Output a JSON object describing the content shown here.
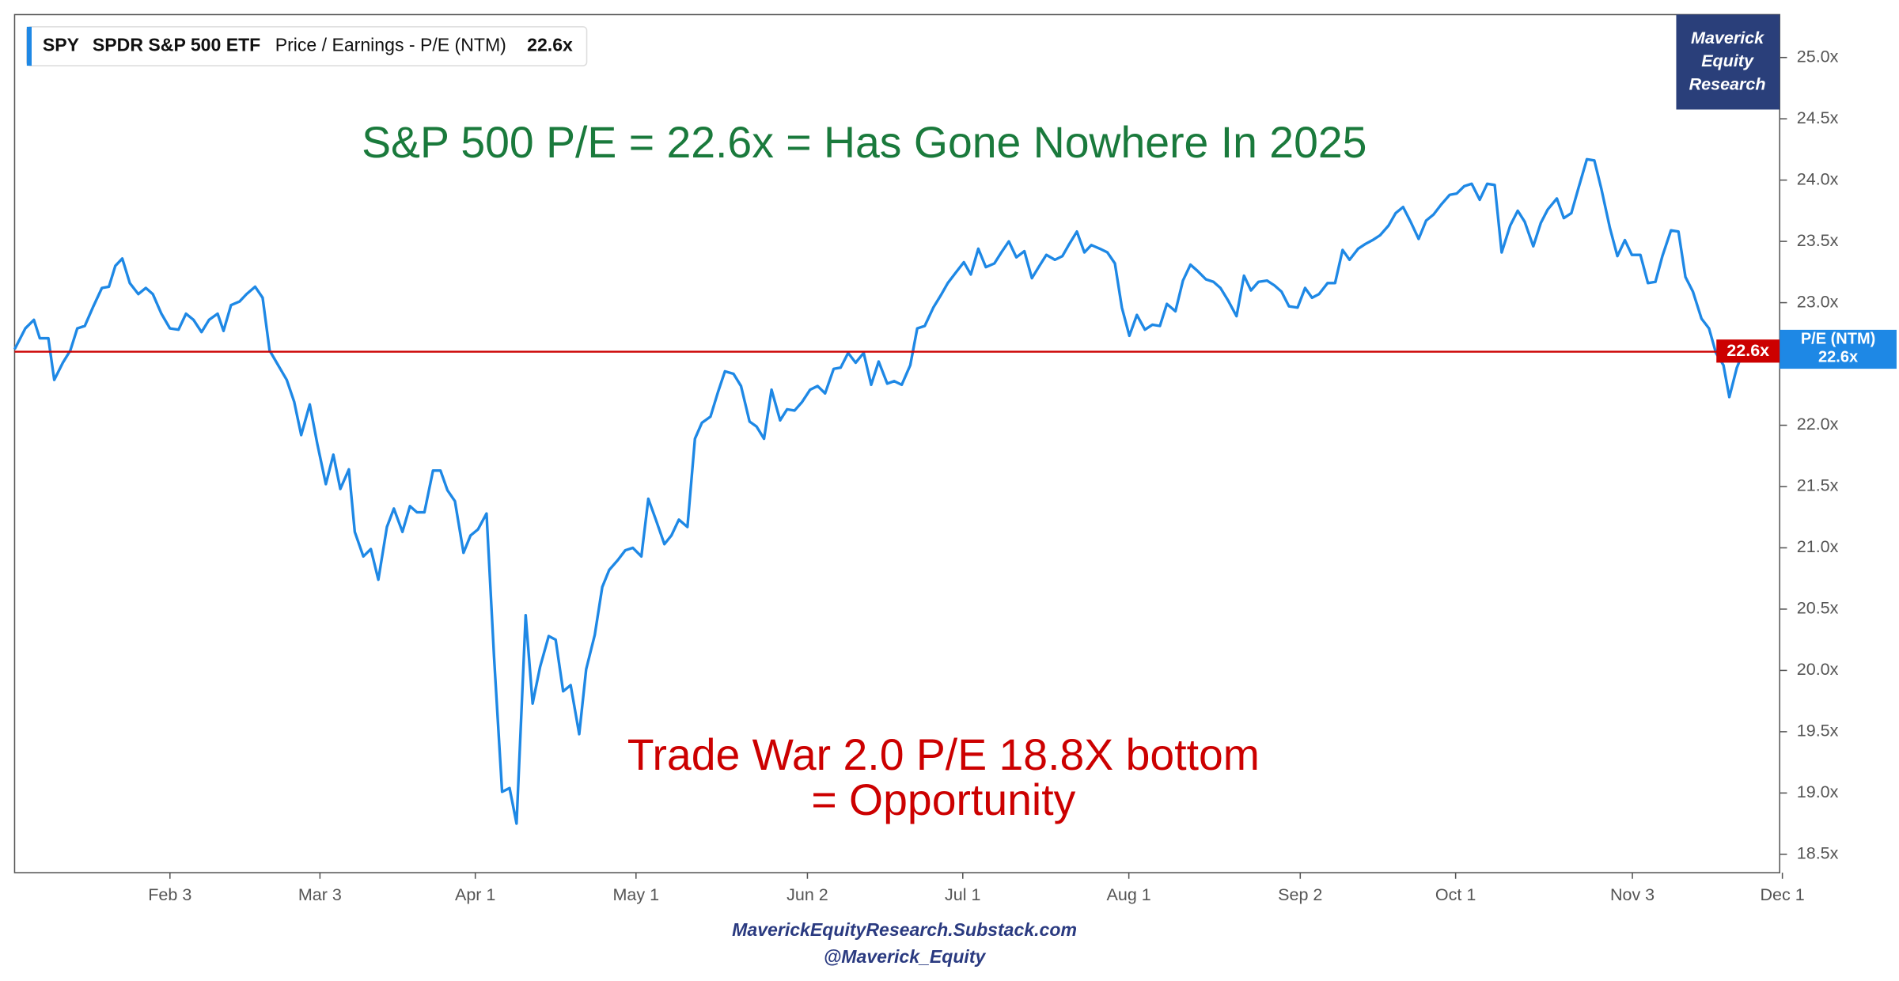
{
  "chart_data": {
    "type": "line",
    "header": {
      "ticker": "SPY",
      "name": "SPDR S&P 500 ETF",
      "metric": "Price / Earnings - P/E (NTM)",
      "value": "22.6x"
    },
    "logo": [
      "Maverick",
      "Equity",
      "Research"
    ],
    "title": "S&P 500 P/E = 22.6x = Has Gone Nowhere In 2025",
    "annotation": [
      "Trade War 2.0 P/E 18.8X bottom",
      "= Opportunity"
    ],
    "footer": [
      "MaverickEquityResearch.Substack.com",
      "@Maverick_Equity"
    ],
    "reference_line": {
      "value": 22.6,
      "label": "22.6x",
      "color": "#cc0000"
    },
    "xlim": [
      5,
      334.5
    ],
    "xticks": [
      {
        "value": 34,
        "label": "Feb 3"
      },
      {
        "value": 62,
        "label": "Mar 3"
      },
      {
        "value": 91,
        "label": "Apr 1"
      },
      {
        "value": 121,
        "label": "May 1"
      },
      {
        "value": 153,
        "label": "Jun 2"
      },
      {
        "value": 182,
        "label": "Jul 1"
      },
      {
        "value": 213,
        "label": "Aug 1"
      },
      {
        "value": 245,
        "label": "Sep 2"
      },
      {
        "value": 274,
        "label": "Oct 1"
      },
      {
        "value": 307,
        "label": "Nov 3"
      },
      {
        "value": 335,
        "label": "Dec 1"
      }
    ],
    "ylim": [
      18.35,
      25.35
    ],
    "yticks": [
      {
        "value": 18.5,
        "label": "18.5x"
      },
      {
        "value": 19,
        "label": "19.0x"
      },
      {
        "value": 19.5,
        "label": "19.5x"
      },
      {
        "value": 20,
        "label": "20.0x"
      },
      {
        "value": 20.5,
        "label": "20.5x"
      },
      {
        "value": 21,
        "label": "21.0x"
      },
      {
        "value": 21.5,
        "label": "21.5x"
      },
      {
        "value": 22,
        "label": "22.0x"
      },
      {
        "value": 22.5,
        "label": "22.5x"
      },
      {
        "value": 23,
        "label": "23.0x"
      },
      {
        "value": 23.5,
        "label": "23.5x"
      },
      {
        "value": 24,
        "label": "24.0x"
      },
      {
        "value": 24.5,
        "label": "24.5x"
      },
      {
        "value": 25,
        "label": "25.0x"
      }
    ],
    "x": [
      5,
      7,
      8.6,
      9.7,
      11.3,
      12.4,
      14,
      15.4,
      16.7,
      18.1,
      19.7,
      21.3,
      22.6,
      23.8,
      25.1,
      26.5,
      28.1,
      29.5,
      30.8,
      32.4,
      34,
      35.6,
      37,
      38.4,
      39.9,
      41.3,
      42.9,
      44,
      45.4,
      47,
      48.3,
      49.9,
      51.3,
      52.6,
      54.2,
      55.8,
      57.2,
      58.5,
      60.1,
      61.5,
      63.1,
      64.5,
      65.8,
      67.4,
      68.5,
      70.1,
      71.5,
      72.9,
      74.5,
      75.8,
      77.4,
      78.8,
      80.1,
      81.5,
      83.1,
      84.5,
      85.8,
      87.2,
      88.8,
      90.1,
      91.5,
      93.1,
      94.5,
      96,
      97.4,
      98.7,
      100.4,
      101.7,
      103.1,
      104.7,
      106,
      107.4,
      108.8,
      110.4,
      111.7,
      113.3,
      114.7,
      116,
      117.6,
      119,
      120.4,
      122,
      123.3,
      124.7,
      126.3,
      127.6,
      129,
      130.6,
      132,
      133.3,
      134.9,
      136.3,
      137.6,
      139.2,
      140.6,
      142.2,
      143.5,
      144.9,
      146.3,
      147.9,
      149.2,
      150.6,
      152,
      153.5,
      154.9,
      156.3,
      157.9,
      159.2,
      160.6,
      162,
      163.5,
      164.9,
      166.3,
      167.9,
      169.2,
      170.6,
      172.2,
      173.5,
      174.9,
      176.5,
      177.9,
      179.2,
      180.6,
      182.2,
      183.5,
      184.9,
      186.3,
      187.9,
      189.2,
      190.6,
      192,
      193.5,
      194.9,
      196.3,
      197.6,
      199.2,
      200.6,
      201.9,
      203.3,
      204.7,
      206,
      207.6,
      209,
      210.4,
      211.7,
      213.1,
      214.5,
      216,
      217.4,
      218.8,
      220.1,
      221.7,
      223.1,
      224.5,
      225.8,
      227.4,
      228.8,
      230.1,
      231.5,
      233.1,
      234.5,
      235.8,
      237.2,
      238.8,
      240.2,
      241.5,
      242.9,
      244.5,
      245.9,
      247.2,
      248.5,
      250.1,
      251.5,
      252.9,
      254.2,
      255.8,
      257.2,
      258.5,
      259.9,
      261.5,
      262.8,
      264.2,
      265.6,
      267.1,
      268.5,
      269.9,
      271.3,
      272.9,
      274.2,
      275.6,
      277,
      278.5,
      279.9,
      281.3,
      282.6,
      284.2,
      285.6,
      286.9,
      288.5,
      289.9,
      291.2,
      292.9,
      294.2,
      295.6,
      296.9,
      298.5,
      299.9,
      301.2,
      302.8,
      304.2,
      305.6,
      306.9,
      308.5,
      309.9,
      311.3,
      312.6,
      314.2,
      315.6,
      316.9,
      318.3,
      319.9,
      321.3,
      322.6,
      324,
      325.1,
      326.5,
      327.9
    ],
    "series": [
      {
        "name": "P/E (NTM)",
        "color": "#1e88e5",
        "values": [
          22.62,
          22.79,
          22.86,
          22.71,
          22.71,
          22.37,
          22.51,
          22.61,
          22.79,
          22.81,
          22.97,
          23.12,
          23.13,
          23.3,
          23.36,
          23.16,
          23.07,
          23.12,
          23.07,
          22.91,
          22.79,
          22.78,
          22.91,
          22.86,
          22.76,
          22.86,
          22.91,
          22.77,
          22.98,
          23.01,
          23.07,
          23.13,
          23.04,
          22.61,
          22.49,
          22.37,
          22.19,
          21.92,
          22.17,
          21.85,
          21.52,
          21.76,
          21.48,
          21.64,
          21.13,
          20.93,
          20.99,
          20.74,
          21.17,
          21.32,
          21.13,
          21.34,
          21.29,
          21.29,
          21.63,
          21.63,
          21.47,
          21.38,
          20.96,
          21.1,
          21.15,
          21.28,
          20.11,
          19.01,
          19.04,
          18.75,
          20.45,
          19.73,
          20.03,
          20.28,
          20.25,
          19.83,
          19.88,
          19.48,
          20.01,
          20.29,
          20.68,
          20.82,
          20.9,
          20.98,
          21,
          20.93,
          21.4,
          21.23,
          21.03,
          21.1,
          21.23,
          21.17,
          21.89,
          22.02,
          22.07,
          22.27,
          22.44,
          22.42,
          22.32,
          22.03,
          21.99,
          21.89,
          22.29,
          22.04,
          22.13,
          22.12,
          22.19,
          22.29,
          22.32,
          22.26,
          22.46,
          22.47,
          22.59,
          22.51,
          22.59,
          22.33,
          22.52,
          22.34,
          22.36,
          22.33,
          22.49,
          22.79,
          22.81,
          22.96,
          23.06,
          23.16,
          23.24,
          23.33,
          23.23,
          23.44,
          23.29,
          23.32,
          23.41,
          23.5,
          23.37,
          23.42,
          23.2,
          23.3,
          23.39,
          23.35,
          23.38,
          23.48,
          23.58,
          23.41,
          23.47,
          23.44,
          23.41,
          23.32,
          22.96,
          22.73,
          22.9,
          22.78,
          22.82,
          22.81,
          22.99,
          22.93,
          23.18,
          23.31,
          23.26,
          23.19,
          23.17,
          23.12,
          23.02,
          22.89,
          23.22,
          23.1,
          23.17,
          23.18,
          23.14,
          23.09,
          22.97,
          22.96,
          23.12,
          23.04,
          23.07,
          23.16,
          23.16,
          23.43,
          23.35,
          23.44,
          23.48,
          23.51,
          23.55,
          23.63,
          23.73,
          23.78,
          23.66,
          23.52,
          23.67,
          23.72,
          23.8,
          23.88,
          23.89,
          23.95,
          23.97,
          23.84,
          23.97,
          23.96,
          23.41,
          23.63,
          23.75,
          23.66,
          23.46,
          23.65,
          23.76,
          23.85,
          23.69,
          23.73,
          23.93,
          24.17,
          24.16,
          23.93,
          23.61,
          23.38,
          23.51,
          23.39,
          23.39,
          23.16,
          23.17,
          23.38,
          23.59,
          23.58,
          23.21,
          23.09,
          22.87,
          22.79,
          22.59,
          22.49,
          22.23,
          22.47,
          22.62
        ]
      }
    ]
  }
}
